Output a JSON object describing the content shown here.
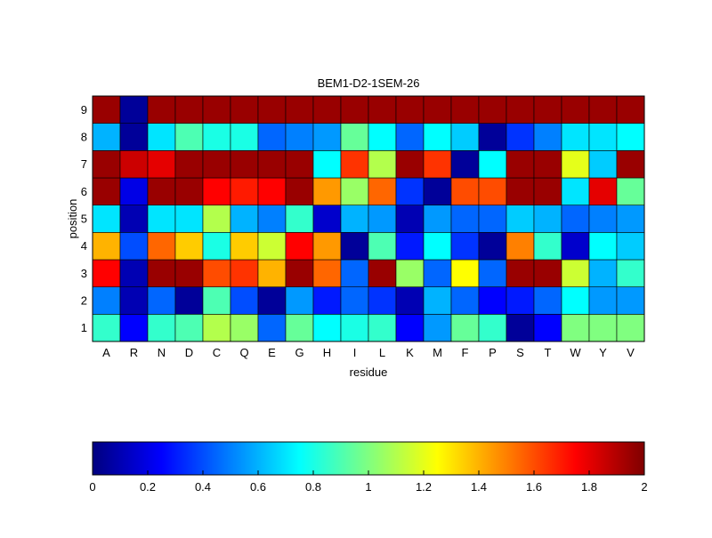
{
  "chart_data": [
    {
      "type": "heatmap",
      "title": "BEM1-D2-1SEM-26",
      "xlabel": "residue",
      "ylabel": "position",
      "x_categories": [
        "A",
        "R",
        "N",
        "D",
        "C",
        "Q",
        "E",
        "G",
        "H",
        "I",
        "L",
        "K",
        "M",
        "F",
        "P",
        "S",
        "T",
        "W",
        "Y",
        "V"
      ],
      "y_categories": [
        "1",
        "2",
        "3",
        "4",
        "5",
        "6",
        "7",
        "8",
        "9"
      ],
      "colormap": "jet",
      "clim": [
        0,
        2
      ],
      "values": [
        [
          0.85,
          0.25,
          0.85,
          0.9,
          1.1,
          1.05,
          0.45,
          0.95,
          0.75,
          0.8,
          0.85,
          0.25,
          0.55,
          0.95,
          0.85,
          0.05,
          0.25,
          1.0,
          1.0,
          1.0
        ],
        [
          0.5,
          0.1,
          0.45,
          0.05,
          0.9,
          0.4,
          0.05,
          0.55,
          0.3,
          0.45,
          0.35,
          0.1,
          0.6,
          0.45,
          0.25,
          0.3,
          0.45,
          0.75,
          0.55,
          0.55
        ],
        [
          1.75,
          0.1,
          1.95,
          1.95,
          1.6,
          1.65,
          1.4,
          1.95,
          1.55,
          0.45,
          1.95,
          1.05,
          0.45,
          1.25,
          0.45,
          1.95,
          1.95,
          1.15,
          0.6,
          0.85
        ],
        [
          1.4,
          0.4,
          1.55,
          1.35,
          0.8,
          1.35,
          1.15,
          1.75,
          1.45,
          0.05,
          0.9,
          0.3,
          0.75,
          0.35,
          0.05,
          1.5,
          0.85,
          0.15,
          0.75,
          0.65
        ],
        [
          0.7,
          0.1,
          0.7,
          0.7,
          1.1,
          0.6,
          0.5,
          0.85,
          0.15,
          0.6,
          0.55,
          0.1,
          0.55,
          0.45,
          0.45,
          0.65,
          0.6,
          0.45,
          0.5,
          0.55
        ],
        [
          1.95,
          0.2,
          1.95,
          1.95,
          1.75,
          1.7,
          1.75,
          1.95,
          1.45,
          1.05,
          1.55,
          0.35,
          0.05,
          1.6,
          1.6,
          1.95,
          1.95,
          0.7,
          1.8,
          0.95
        ],
        [
          1.95,
          1.85,
          1.8,
          1.95,
          1.95,
          1.95,
          1.95,
          1.95,
          0.75,
          1.65,
          1.1,
          1.95,
          1.65,
          0.05,
          0.75,
          1.95,
          1.95,
          1.2,
          0.65,
          1.95
        ],
        [
          0.6,
          0.05,
          0.7,
          0.9,
          0.8,
          0.8,
          0.45,
          0.5,
          0.55,
          0.95,
          0.75,
          0.45,
          0.75,
          0.65,
          0.05,
          0.35,
          0.5,
          0.7,
          0.7,
          0.75
        ],
        [
          1.95,
          0.05,
          1.95,
          1.95,
          1.95,
          1.95,
          1.95,
          1.95,
          1.95,
          1.95,
          1.95,
          1.95,
          1.95,
          1.95,
          1.95,
          1.95,
          1.95,
          1.95,
          1.95,
          1.95
        ]
      ],
      "grid": false
    },
    {
      "type": "colorbar",
      "colormap": "jet",
      "range": [
        0,
        2
      ],
      "tick_labels": [
        "0",
        "0.2",
        "0.4",
        "0.6",
        "0.8",
        "1",
        "1.2",
        "1.4",
        "1.6",
        "1.8",
        "2"
      ]
    }
  ]
}
